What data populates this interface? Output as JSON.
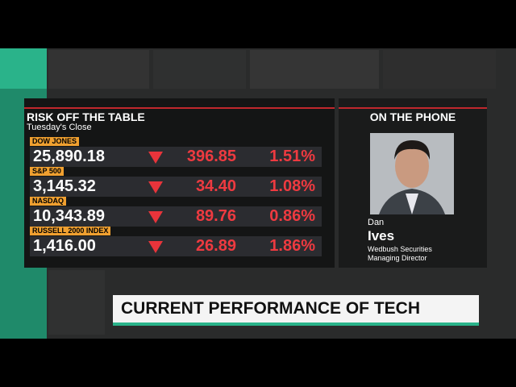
{
  "header": {
    "title": "RISK OFF THE TABLE",
    "subtitle": "Tuesday's Close"
  },
  "table": {
    "rows": [
      {
        "label": "DOW JONES",
        "value": "25,890.18",
        "change": "396.85",
        "percent": "1.51%"
      },
      {
        "label": "S&P 500",
        "value": "3,145.32",
        "change": "34.40",
        "percent": "1.08%"
      },
      {
        "label": "NASDAQ",
        "value": "10,343.89",
        "change": "89.76",
        "percent": "0.86%"
      },
      {
        "label": "RUSSELL 2000 INDEX",
        "value": "1,416.00",
        "change": "26.89",
        "percent": "1.86%"
      }
    ]
  },
  "guest": {
    "section_title": "ON THE PHONE",
    "first_name": "Dan",
    "last_name": "Ives",
    "company": "Wedbush Securities",
    "role": "Managing Director"
  },
  "banner": {
    "text": "CURRENT PERFORMANCE OF TECH"
  }
}
